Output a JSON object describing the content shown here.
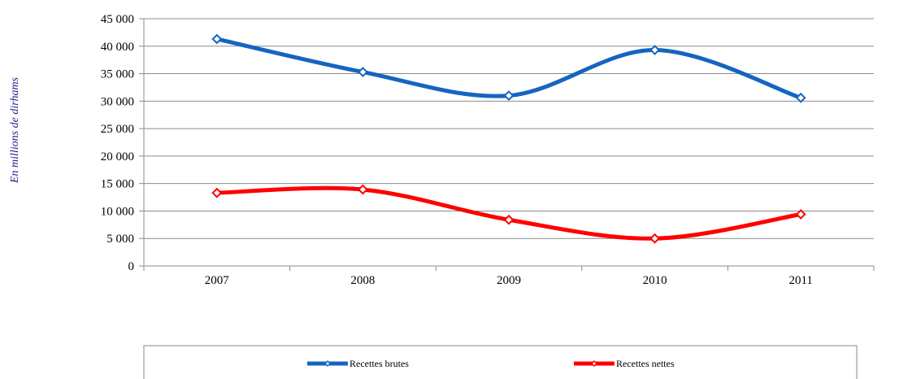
{
  "chart_data": {
    "type": "line",
    "title": "",
    "xlabel": "",
    "ylabel": "En millions de dirhams",
    "categories": [
      "2007",
      "2008",
      "2009",
      "2010",
      "2011"
    ],
    "ylim": [
      0,
      45000
    ],
    "yticks": [
      0,
      5000,
      10000,
      15000,
      20000,
      25000,
      30000,
      35000,
      40000,
      45000
    ],
    "ytick_labels": [
      "0",
      "5 000",
      "10 000",
      "15 000",
      "20 000",
      "25 000",
      "30 000",
      "35 000",
      "40 000",
      "45 000"
    ],
    "grid": true,
    "smooth": true,
    "legend_position": "bottom",
    "series": [
      {
        "name": "Recettes brutes",
        "color": "#1565c0",
        "values": [
          41300,
          35300,
          31000,
          39300,
          30600
        ]
      },
      {
        "name": "Recettes nettes",
        "color": "#ff0000",
        "values": [
          13300,
          13900,
          8400,
          5000,
          9400
        ]
      }
    ]
  }
}
